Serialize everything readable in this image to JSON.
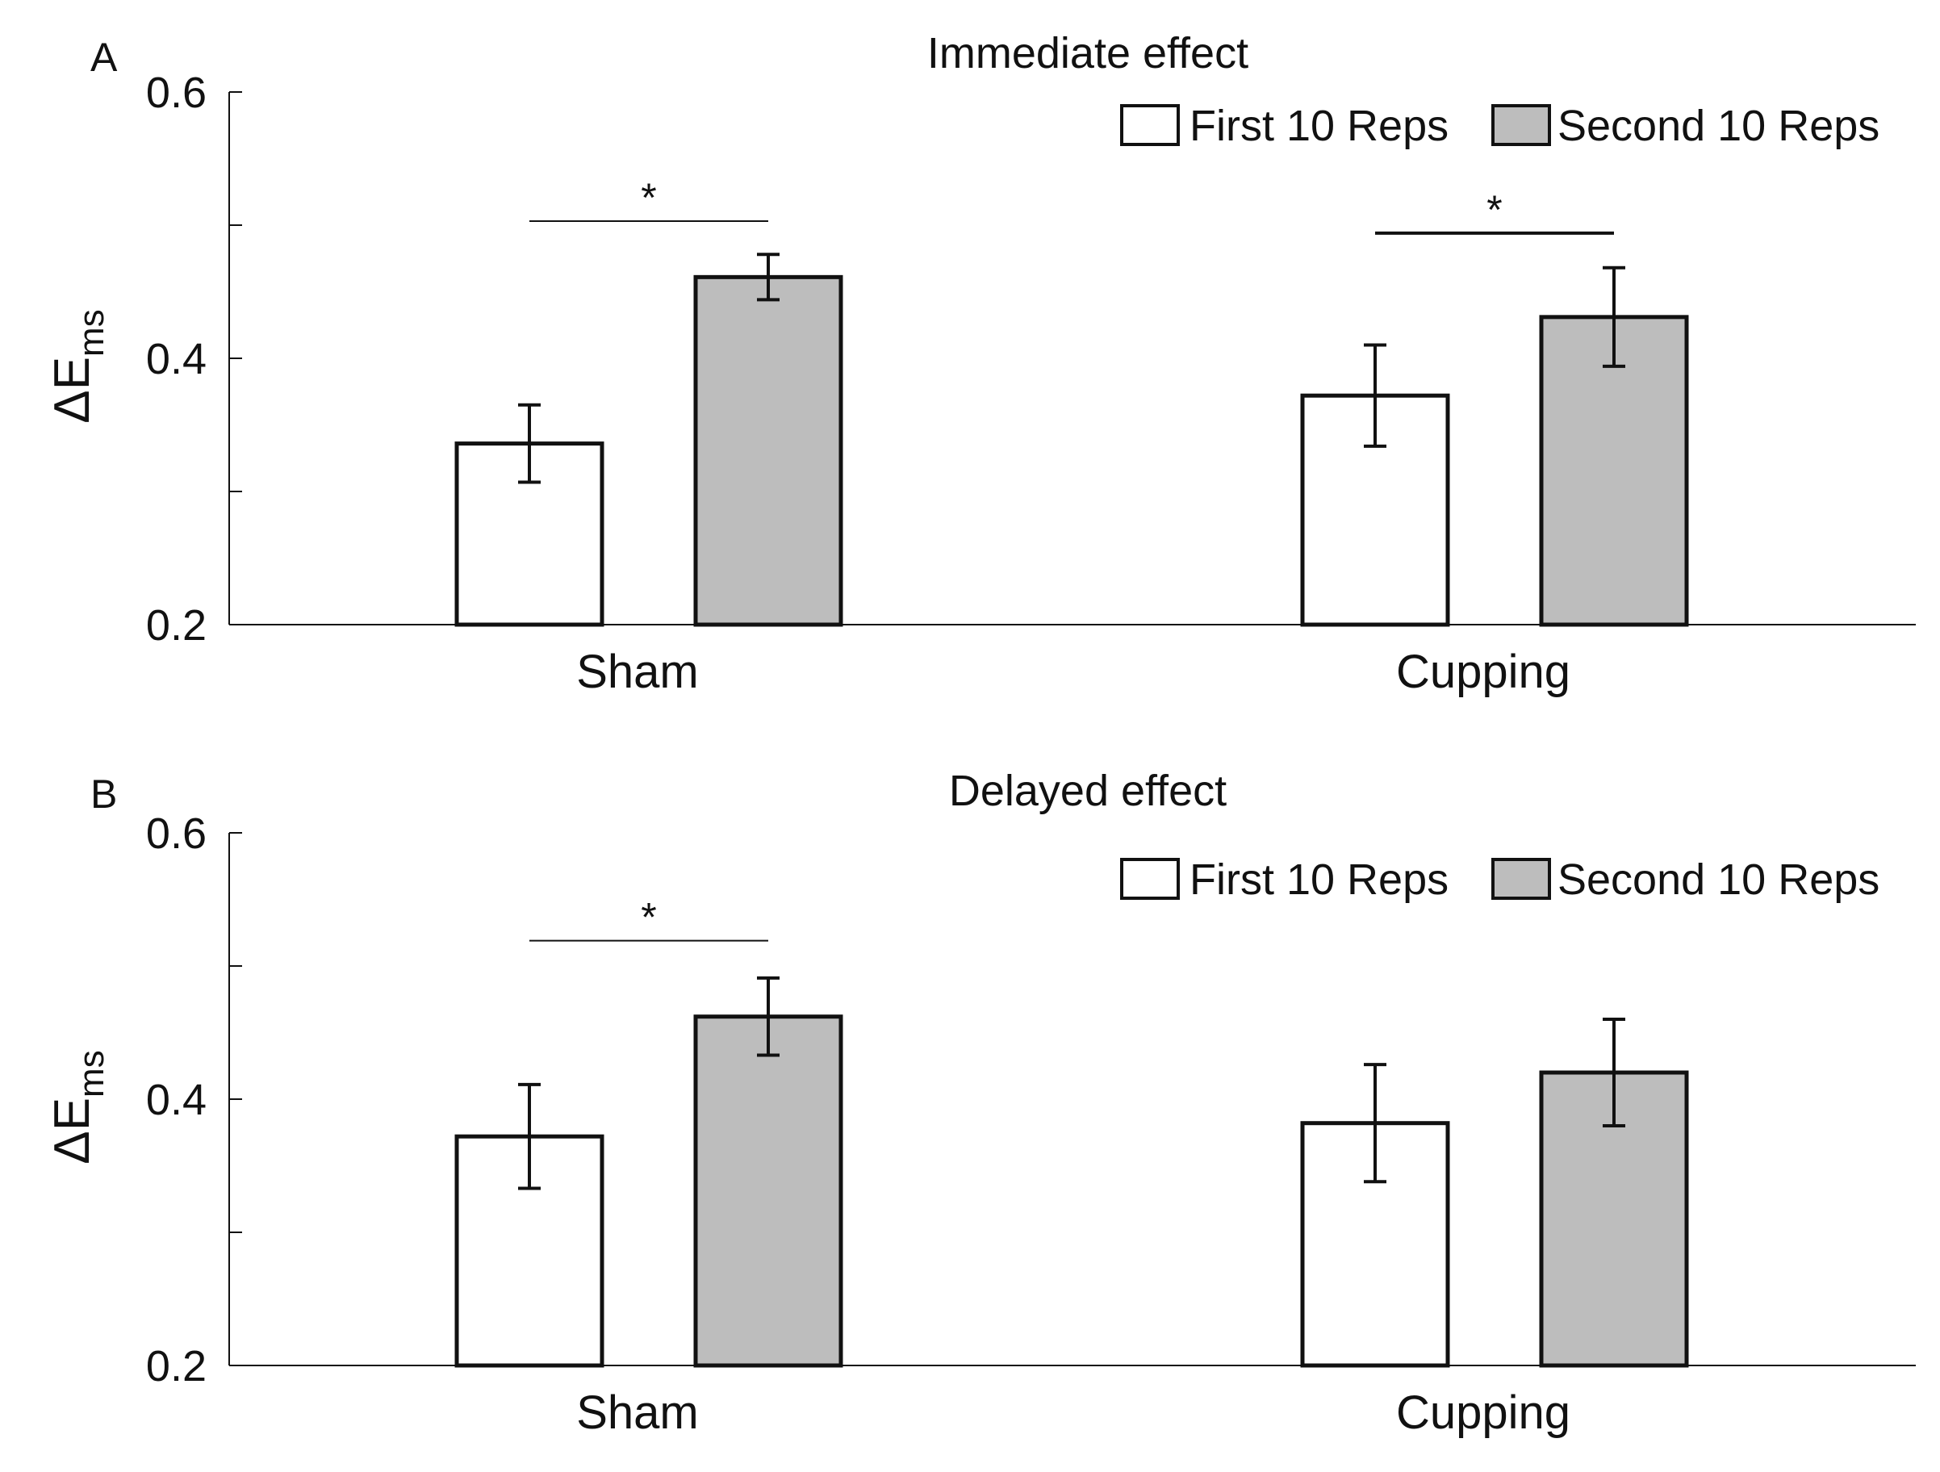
{
  "colors": {
    "first_fill": "#ffffff",
    "second_fill": "#bdbdbd",
    "stroke": "#111111"
  },
  "legend": {
    "first_label": "First 10 Reps",
    "second_label": "Second 10 Reps"
  },
  "chart_data": [
    {
      "type": "bar",
      "panel": "A",
      "title": "Immediate effect",
      "ylabel_main": "ΔE",
      "ylabel_sub": "ms",
      "ylim": [
        0.2,
        0.6
      ],
      "yticks": [
        0.2,
        0.3,
        0.4,
        0.5,
        0.6
      ],
      "ytick_labels": [
        "0.2",
        "",
        "0.4",
        "",
        "0.6"
      ],
      "categories": [
        "Sham",
        "Cupping"
      ],
      "series": [
        {
          "name": "First 10 Reps",
          "values": [
            0.336,
            0.372
          ],
          "errors": [
            0.029,
            0.038
          ]
        },
        {
          "name": "Second 10 Reps",
          "values": [
            0.461,
            0.431
          ],
          "errors": [
            0.017,
            0.037
          ]
        }
      ],
      "significance": [
        {
          "category": "Sham",
          "label": "*",
          "y": 0.503
        },
        {
          "category": "Cupping",
          "label": "*",
          "y": 0.494
        }
      ],
      "legend_position": "top-right"
    },
    {
      "type": "bar",
      "panel": "B",
      "title": "Delayed effect",
      "ylabel_main": "ΔE",
      "ylabel_sub": "ms",
      "ylim": [
        0.2,
        0.6
      ],
      "yticks": [
        0.2,
        0.3,
        0.4,
        0.5,
        0.6
      ],
      "ytick_labels": [
        "0.2",
        "",
        "0.4",
        "",
        "0.6"
      ],
      "categories": [
        "Sham",
        "Cupping"
      ],
      "series": [
        {
          "name": "First 10 Reps",
          "values": [
            0.372,
            0.382
          ],
          "errors": [
            0.039,
            0.044
          ]
        },
        {
          "name": "Second 10 Reps",
          "values": [
            0.462,
            0.42
          ],
          "errors": [
            0.029,
            0.04
          ]
        }
      ],
      "significance": [
        {
          "category": "Sham",
          "label": "*",
          "y": 0.519
        }
      ],
      "legend_position": "top-right"
    }
  ]
}
